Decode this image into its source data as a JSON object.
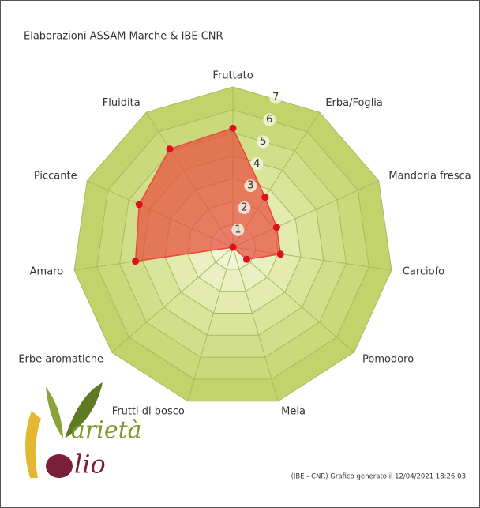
{
  "chart_data": {
    "type": "radar",
    "title": "Elaborazioni ASSAM Marche & IBE CNR",
    "categories": [
      "Fruttato",
      "Erba/Foglia",
      "Mandorla fresca",
      "Carciofo",
      "Pomodoro",
      "Mela",
      "Frutti di bosco",
      "Erbe aromatiche",
      "Amaro",
      "Piccante",
      "Fluidita"
    ],
    "values": [
      5.2,
      2.6,
      2.1,
      2.1,
      0.8,
      0,
      0,
      0,
      4.3,
      4.5,
      5.1
    ],
    "color": "#e8483a",
    "rlim": [
      0,
      7
    ],
    "rticks": [
      1,
      2,
      3,
      4,
      5,
      6,
      7
    ],
    "footnote": "(IBE - CNR) Grafico generato il 12/04/2021 18:26:03"
  },
  "logo": {
    "line1": "arietà",
    "line2": "lio"
  }
}
